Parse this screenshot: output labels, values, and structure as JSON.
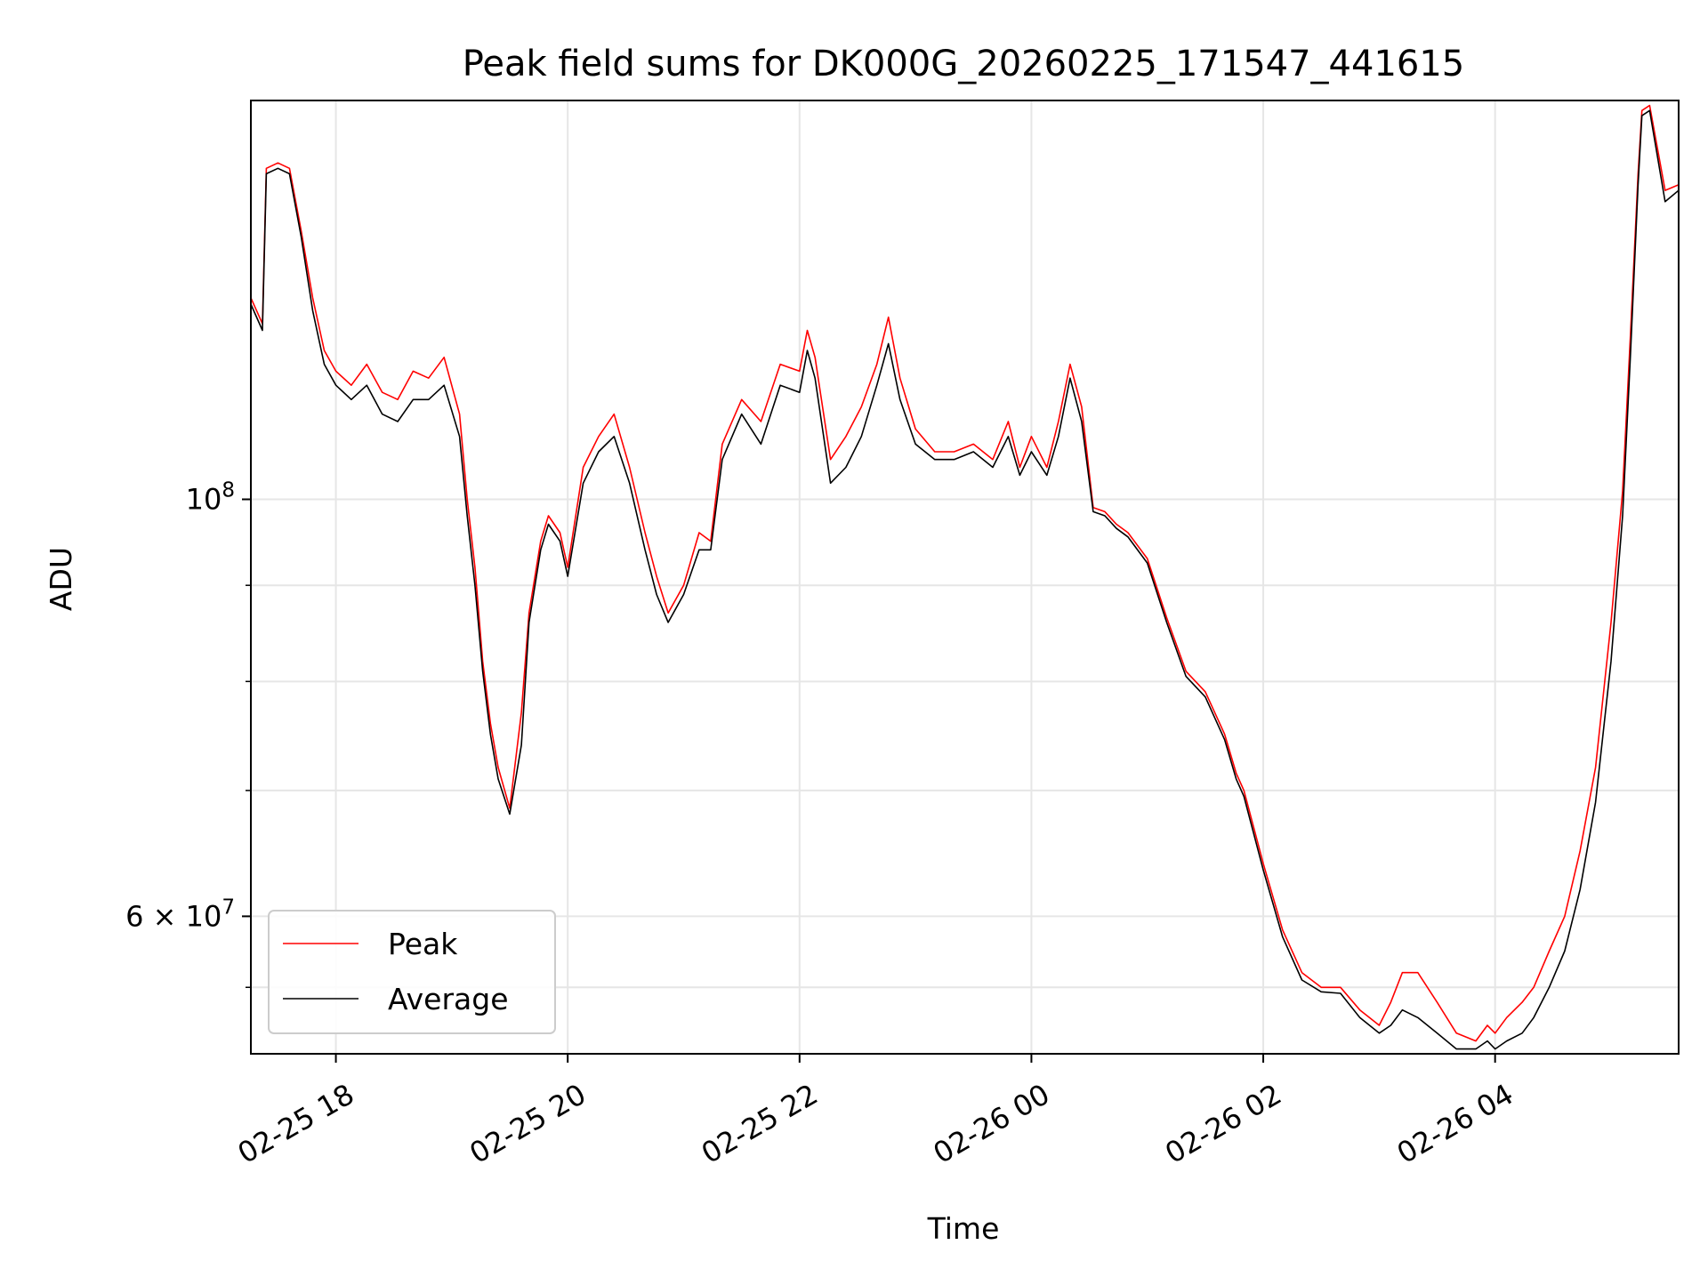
{
  "chart_data": {
    "type": "line",
    "title": "Peak field sums for DK000G_20260225_171547_441615",
    "xlabel": "Time",
    "ylabel": "ADU",
    "yscale": "log",
    "grid": true,
    "legend_position": "lower-left",
    "xlim": [
      "2026-02-25 17:16",
      "2026-02-26 05:35"
    ],
    "ylim": [
      50700000,
      163000000
    ],
    "x_ticks": [
      "02-25 18",
      "02-25 20",
      "02-25 22",
      "02-26 00",
      "02-26 02",
      "02-26 04"
    ],
    "x_tick_values": [
      "2026-02-25 18:00",
      "2026-02-25 20:00",
      "2026-02-25 22:00",
      "2026-02-26 00:00",
      "2026-02-26 02:00",
      "2026-02-26 04:00"
    ],
    "y_tick_labels": [
      {
        "value": 100000000,
        "mantissa": "10",
        "exponent": "8"
      },
      {
        "value": 60000000,
        "mantissa": "6 × 10",
        "exponent": "7"
      }
    ],
    "y_minor_ticks": [
      70000000,
      80000000,
      90000000,
      55000000
    ],
    "series": [
      {
        "name": "Peak",
        "color": "#ff0000",
        "x": [
          "2026-02-25 17:16",
          "2026-02-25 17:22",
          "2026-02-25 17:24",
          "2026-02-25 17:30",
          "2026-02-25 17:36",
          "2026-02-25 17:42",
          "2026-02-25 17:48",
          "2026-02-25 17:54",
          "2026-02-25 18:00",
          "2026-02-25 18:08",
          "2026-02-25 18:16",
          "2026-02-25 18:24",
          "2026-02-25 18:32",
          "2026-02-25 18:40",
          "2026-02-25 18:48",
          "2026-02-25 18:56",
          "2026-02-25 19:04",
          "2026-02-25 19:08",
          "2026-02-25 19:12",
          "2026-02-25 19:16",
          "2026-02-25 19:20",
          "2026-02-25 19:24",
          "2026-02-25 19:30",
          "2026-02-25 19:36",
          "2026-02-25 19:40",
          "2026-02-25 19:46",
          "2026-02-25 19:50",
          "2026-02-25 19:56",
          "2026-02-25 20:00",
          "2026-02-25 20:08",
          "2026-02-25 20:16",
          "2026-02-25 20:24",
          "2026-02-25 20:32",
          "2026-02-25 20:40",
          "2026-02-25 20:46",
          "2026-02-25 20:52",
          "2026-02-25 21:00",
          "2026-02-25 21:08",
          "2026-02-25 21:14",
          "2026-02-25 21:20",
          "2026-02-25 21:30",
          "2026-02-25 21:40",
          "2026-02-25 21:50",
          "2026-02-25 22:00",
          "2026-02-25 22:04",
          "2026-02-25 22:08",
          "2026-02-25 22:16",
          "2026-02-25 22:24",
          "2026-02-25 22:32",
          "2026-02-25 22:40",
          "2026-02-25 22:46",
          "2026-02-25 22:52",
          "2026-02-25 23:00",
          "2026-02-25 23:10",
          "2026-02-25 23:20",
          "2026-02-25 23:30",
          "2026-02-25 23:40",
          "2026-02-25 23:48",
          "2026-02-25 23:54",
          "2026-02-26 00:00",
          "2026-02-26 00:08",
          "2026-02-26 00:14",
          "2026-02-26 00:20",
          "2026-02-26 00:26",
          "2026-02-26 00:32",
          "2026-02-26 00:38",
          "2026-02-26 00:44",
          "2026-02-26 00:50",
          "2026-02-26 01:00",
          "2026-02-26 01:10",
          "2026-02-26 01:20",
          "2026-02-26 01:30",
          "2026-02-26 01:40",
          "2026-02-26 01:46",
          "2026-02-26 01:50",
          "2026-02-26 02:00",
          "2026-02-26 02:10",
          "2026-02-26 02:20",
          "2026-02-26 02:30",
          "2026-02-26 02:40",
          "2026-02-26 02:50",
          "2026-02-26 03:00",
          "2026-02-26 03:06",
          "2026-02-26 03:12",
          "2026-02-26 03:20",
          "2026-02-26 03:30",
          "2026-02-26 03:40",
          "2026-02-26 03:50",
          "2026-02-26 03:56",
          "2026-02-26 04:00",
          "2026-02-26 04:06",
          "2026-02-26 04:14",
          "2026-02-26 04:20",
          "2026-02-26 04:28",
          "2026-02-26 04:36",
          "2026-02-26 04:44",
          "2026-02-26 04:52",
          "2026-02-26 05:00",
          "2026-02-26 05:06",
          "2026-02-26 05:10",
          "2026-02-26 05:14",
          "2026-02-26 05:16",
          "2026-02-26 05:20",
          "2026-02-26 05:28",
          "2026-02-26 05:35"
        ],
        "y": [
          128000000,
          124000000,
          150000000,
          151000000,
          150000000,
          139000000,
          128000000,
          120000000,
          117000000,
          115000000,
          118000000,
          114000000,
          113000000,
          117000000,
          116000000,
          119000000,
          111000000,
          100000000,
          92000000,
          82000000,
          76000000,
          72000000,
          68500000,
          77000000,
          87000000,
          95000000,
          98000000,
          96000000,
          92000000,
          104000000,
          108000000,
          111000000,
          104000000,
          96000000,
          91000000,
          87000000,
          90000000,
          96000000,
          95000000,
          107000000,
          113000000,
          110000000,
          118000000,
          117000000,
          123000000,
          119000000,
          105000000,
          108000000,
          112000000,
          118000000,
          125000000,
          116000000,
          109000000,
          106000000,
          106000000,
          107000000,
          105000000,
          110000000,
          104000000,
          108000000,
          104000000,
          110000000,
          118000000,
          112000000,
          99000000,
          98500000,
          97000000,
          96000000,
          93000000,
          86500000,
          81000000,
          79000000,
          75000000,
          71500000,
          70000000,
          64000000,
          59000000,
          56000000,
          55000000,
          55000000,
          53500000,
          52500000,
          54000000,
          56000000,
          56000000,
          54000000,
          52000000,
          51500000,
          52500000,
          52000000,
          53000000,
          54000000,
          55000000,
          57500000,
          60000000,
          65000000,
          72000000,
          86000000,
          101000000,
          122000000,
          149000000,
          161000000,
          162000000,
          146000000,
          147000000
        ]
      },
      {
        "name": "Average",
        "color": "#000000",
        "x": [
          "2026-02-25 17:16",
          "2026-02-25 17:22",
          "2026-02-25 17:24",
          "2026-02-25 17:30",
          "2026-02-25 17:36",
          "2026-02-25 17:42",
          "2026-02-25 17:48",
          "2026-02-25 17:54",
          "2026-02-25 18:00",
          "2026-02-25 18:08",
          "2026-02-25 18:16",
          "2026-02-25 18:24",
          "2026-02-25 18:32",
          "2026-02-25 18:40",
          "2026-02-25 18:48",
          "2026-02-25 18:56",
          "2026-02-25 19:04",
          "2026-02-25 19:08",
          "2026-02-25 19:12",
          "2026-02-25 19:16",
          "2026-02-25 19:20",
          "2026-02-25 19:24",
          "2026-02-25 19:30",
          "2026-02-25 19:36",
          "2026-02-25 19:40",
          "2026-02-25 19:46",
          "2026-02-25 19:50",
          "2026-02-25 19:56",
          "2026-02-25 20:00",
          "2026-02-25 20:08",
          "2026-02-25 20:16",
          "2026-02-25 20:24",
          "2026-02-25 20:32",
          "2026-02-25 20:40",
          "2026-02-25 20:46",
          "2026-02-25 20:52",
          "2026-02-25 21:00",
          "2026-02-25 21:08",
          "2026-02-25 21:14",
          "2026-02-25 21:20",
          "2026-02-25 21:30",
          "2026-02-25 21:40",
          "2026-02-25 21:50",
          "2026-02-25 22:00",
          "2026-02-25 22:04",
          "2026-02-25 22:08",
          "2026-02-25 22:16",
          "2026-02-25 22:24",
          "2026-02-25 22:32",
          "2026-02-25 22:40",
          "2026-02-25 22:46",
          "2026-02-25 22:52",
          "2026-02-25 23:00",
          "2026-02-25 23:10",
          "2026-02-25 23:20",
          "2026-02-25 23:30",
          "2026-02-25 23:40",
          "2026-02-25 23:48",
          "2026-02-25 23:54",
          "2026-02-26 00:00",
          "2026-02-26 00:08",
          "2026-02-26 00:14",
          "2026-02-26 00:20",
          "2026-02-26 00:26",
          "2026-02-26 00:32",
          "2026-02-26 00:38",
          "2026-02-26 00:44",
          "2026-02-26 00:50",
          "2026-02-26 01:00",
          "2026-02-26 01:10",
          "2026-02-26 01:20",
          "2026-02-26 01:30",
          "2026-02-26 01:40",
          "2026-02-26 01:46",
          "2026-02-26 01:50",
          "2026-02-26 02:00",
          "2026-02-26 02:10",
          "2026-02-26 02:20",
          "2026-02-26 02:30",
          "2026-02-26 02:40",
          "2026-02-26 02:50",
          "2026-02-26 03:00",
          "2026-02-26 03:06",
          "2026-02-26 03:12",
          "2026-02-26 03:20",
          "2026-02-26 03:30",
          "2026-02-26 03:40",
          "2026-02-26 03:50",
          "2026-02-26 03:56",
          "2026-02-26 04:00",
          "2026-02-26 04:06",
          "2026-02-26 04:14",
          "2026-02-26 04:20",
          "2026-02-26 04:28",
          "2026-02-26 04:36",
          "2026-02-26 04:44",
          "2026-02-26 04:52",
          "2026-02-26 05:00",
          "2026-02-26 05:06",
          "2026-02-26 05:10",
          "2026-02-26 05:14",
          "2026-02-26 05:16",
          "2026-02-26 05:20",
          "2026-02-26 05:28",
          "2026-02-26 05:35"
        ],
        "y": [
          127000000,
          123000000,
          149000000,
          150000000,
          149000000,
          138000000,
          126000000,
          118000000,
          115000000,
          113000000,
          115000000,
          111000000,
          110000000,
          113000000,
          113000000,
          115000000,
          108000000,
          98000000,
          90000000,
          81000000,
          75000000,
          71000000,
          68000000,
          74000000,
          86000000,
          94000000,
          97000000,
          95000000,
          91000000,
          102000000,
          106000000,
          108000000,
          102000000,
          94000000,
          89000000,
          86000000,
          89000000,
          94000000,
          94000000,
          105000000,
          111000000,
          107000000,
          115000000,
          114000000,
          120000000,
          116000000,
          102000000,
          104000000,
          108000000,
          115000000,
          121000000,
          113000000,
          107000000,
          105000000,
          105000000,
          106000000,
          104000000,
          108000000,
          103000000,
          106000000,
          103000000,
          108000000,
          116000000,
          110000000,
          98500000,
          98000000,
          96500000,
          95500000,
          92500000,
          86000000,
          80500000,
          78500000,
          74500000,
          71000000,
          69500000,
          63500000,
          58500000,
          55500000,
          54700000,
          54600000,
          53000000,
          52000000,
          52500000,
          53500000,
          53000000,
          52000000,
          51000000,
          51000000,
          51500000,
          51000000,
          51500000,
          52000000,
          53000000,
          55000000,
          57500000,
          62000000,
          69000000,
          82000000,
          98000000,
          119000000,
          147000000,
          160000000,
          161000000,
          144000000,
          146000000
        ]
      }
    ]
  }
}
